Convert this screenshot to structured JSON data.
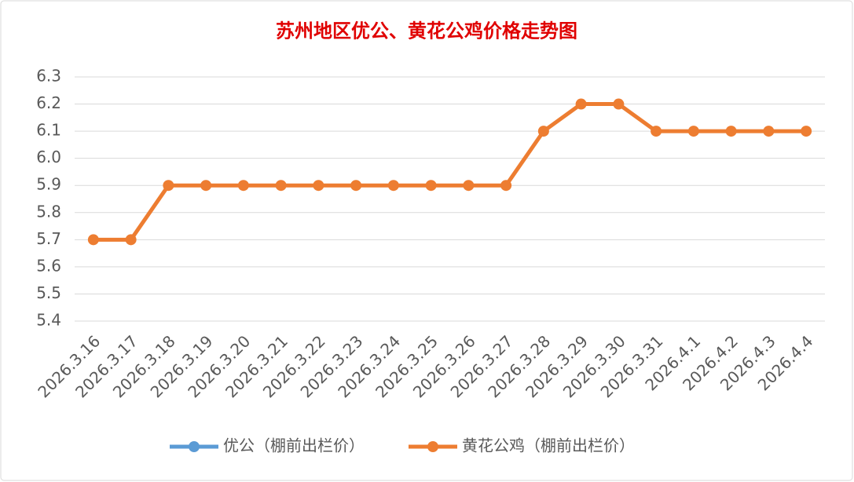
{
  "chart_data": {
    "type": "line",
    "title": "苏州地区优公、黄花公鸡价格走势图",
    "categories": [
      "2026.3.16",
      "2026.3.17",
      "2026.3.18",
      "2026.3.19",
      "2026.3.20",
      "2026.3.21",
      "2026.3.22",
      "2026.3.23",
      "2026.3.24",
      "2026.3.25",
      "2026.3.26",
      "2026.3.27",
      "2026.3.28",
      "2026.3.29",
      "2026.3.30",
      "2026.3.31",
      "2026.4.1",
      "2026.4.2",
      "2026.4.3",
      "2026.4.4"
    ],
    "series": [
      {
        "name": "优公（棚前出栏价）",
        "color": "#5b9bd5",
        "values": [
          null,
          null,
          null,
          null,
          null,
          null,
          null,
          null,
          null,
          null,
          null,
          null,
          null,
          null,
          null,
          null,
          null,
          null,
          null,
          null
        ]
      },
      {
        "name": "黄花公鸡（棚前出栏价）",
        "color": "#ed7d31",
        "values": [
          5.7,
          5.7,
          5.9,
          5.9,
          5.9,
          5.9,
          5.9,
          5.9,
          5.9,
          5.9,
          5.9,
          5.9,
          6.1,
          6.2,
          6.2,
          6.1,
          6.1,
          6.1,
          6.1,
          6.1
        ]
      }
    ],
    "ylim": [
      5.4,
      6.3
    ],
    "yticks": [
      5.4,
      5.5,
      5.6,
      5.7,
      5.8,
      5.9,
      {
        "value": 6,
        "label": "6.0"
      },
      6.1,
      6.2,
      6.3
    ],
    "grid": true,
    "legend": "bottom"
  }
}
